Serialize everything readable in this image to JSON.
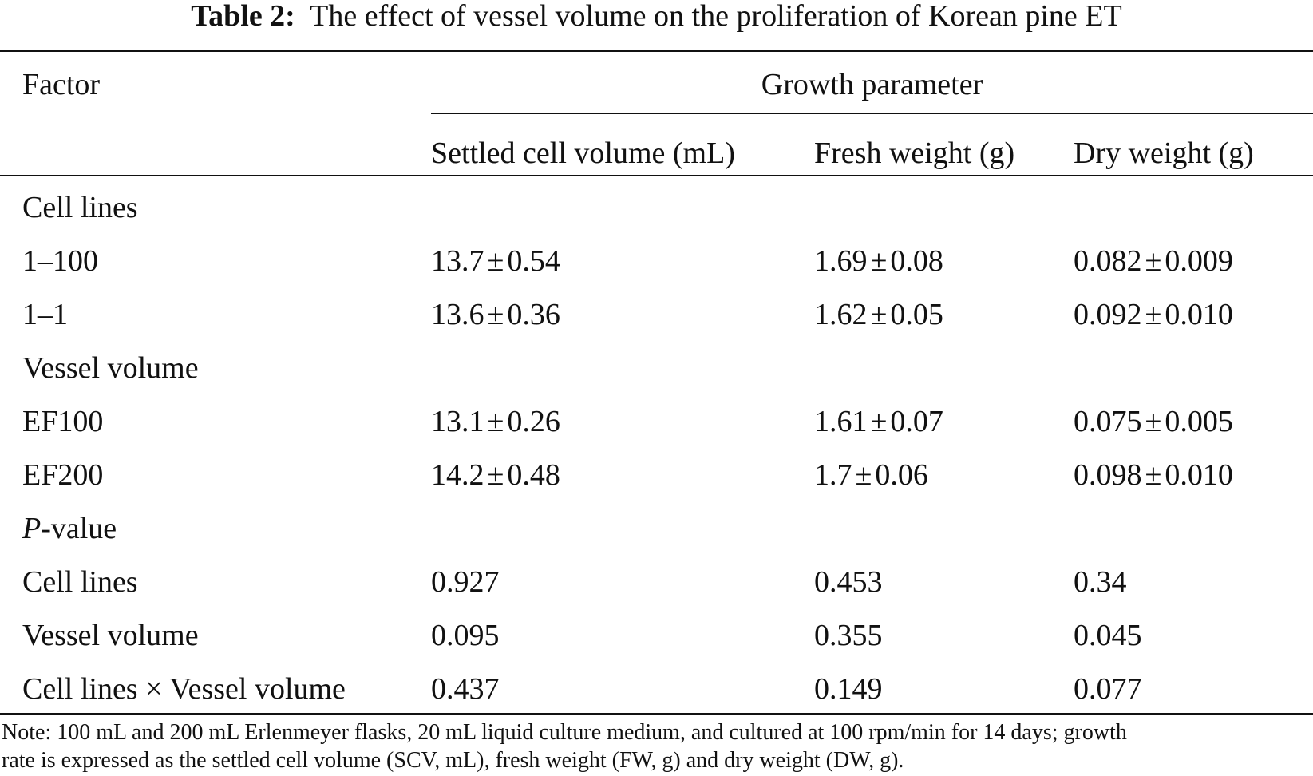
{
  "table": {
    "title_label": "Table 2:",
    "title_text": "The effect of vessel volume on the proliferation of Korean pine ET",
    "header": {
      "factor": "Factor",
      "group": "Growth parameter",
      "columns": [
        "Settled cell volume (mL)",
        "Fresh weight (g)",
        "Dry weight (g)"
      ]
    },
    "sections": {
      "cell_lines": "Cell lines",
      "vessel_volume": "Vessel volume",
      "p_value_italic": "P",
      "p_value_rest": "-value"
    },
    "pm": "±",
    "rows": {
      "r1": {
        "label": "1–100",
        "scv": [
          "13.7",
          "0.54"
        ],
        "fw": [
          "1.69",
          "0.08"
        ],
        "dw": [
          "0.082",
          "0.009"
        ]
      },
      "r2": {
        "label": "1–1",
        "scv": [
          "13.6",
          "0.36"
        ],
        "fw": [
          "1.62",
          "0.05"
        ],
        "dw": [
          "0.092",
          "0.010"
        ]
      },
      "r3": {
        "label": "EF100",
        "scv": [
          "13.1",
          "0.26"
        ],
        "fw": [
          "1.61",
          "0.07"
        ],
        "dw": [
          "0.075",
          "0.005"
        ]
      },
      "r4": {
        "label": "EF200",
        "scv": [
          "14.2",
          "0.48"
        ],
        "fw": [
          "1.7",
          "0.06"
        ],
        "dw": [
          "0.098",
          "0.010"
        ]
      },
      "p1": {
        "label": "Cell lines",
        "scv": "0.927",
        "fw": "0.453",
        "dw": "0.34"
      },
      "p2": {
        "label": "Vessel volume",
        "scv": "0.095",
        "fw": "0.355",
        "dw": "0.045"
      },
      "p3": {
        "label": "Cell lines × Vessel volume",
        "scv": "0.437",
        "fw": "0.149",
        "dw": "0.077"
      }
    },
    "note_line1": "Note: 100 mL and 200 mL Erlenmeyer flasks, 20 mL liquid culture medium, and cultured at 100 rpm/min for 14 days; growth",
    "note_line2": "rate is expressed as the settled cell volume (SCV, mL), fresh weight (FW, g) and dry weight (DW, g)."
  }
}
